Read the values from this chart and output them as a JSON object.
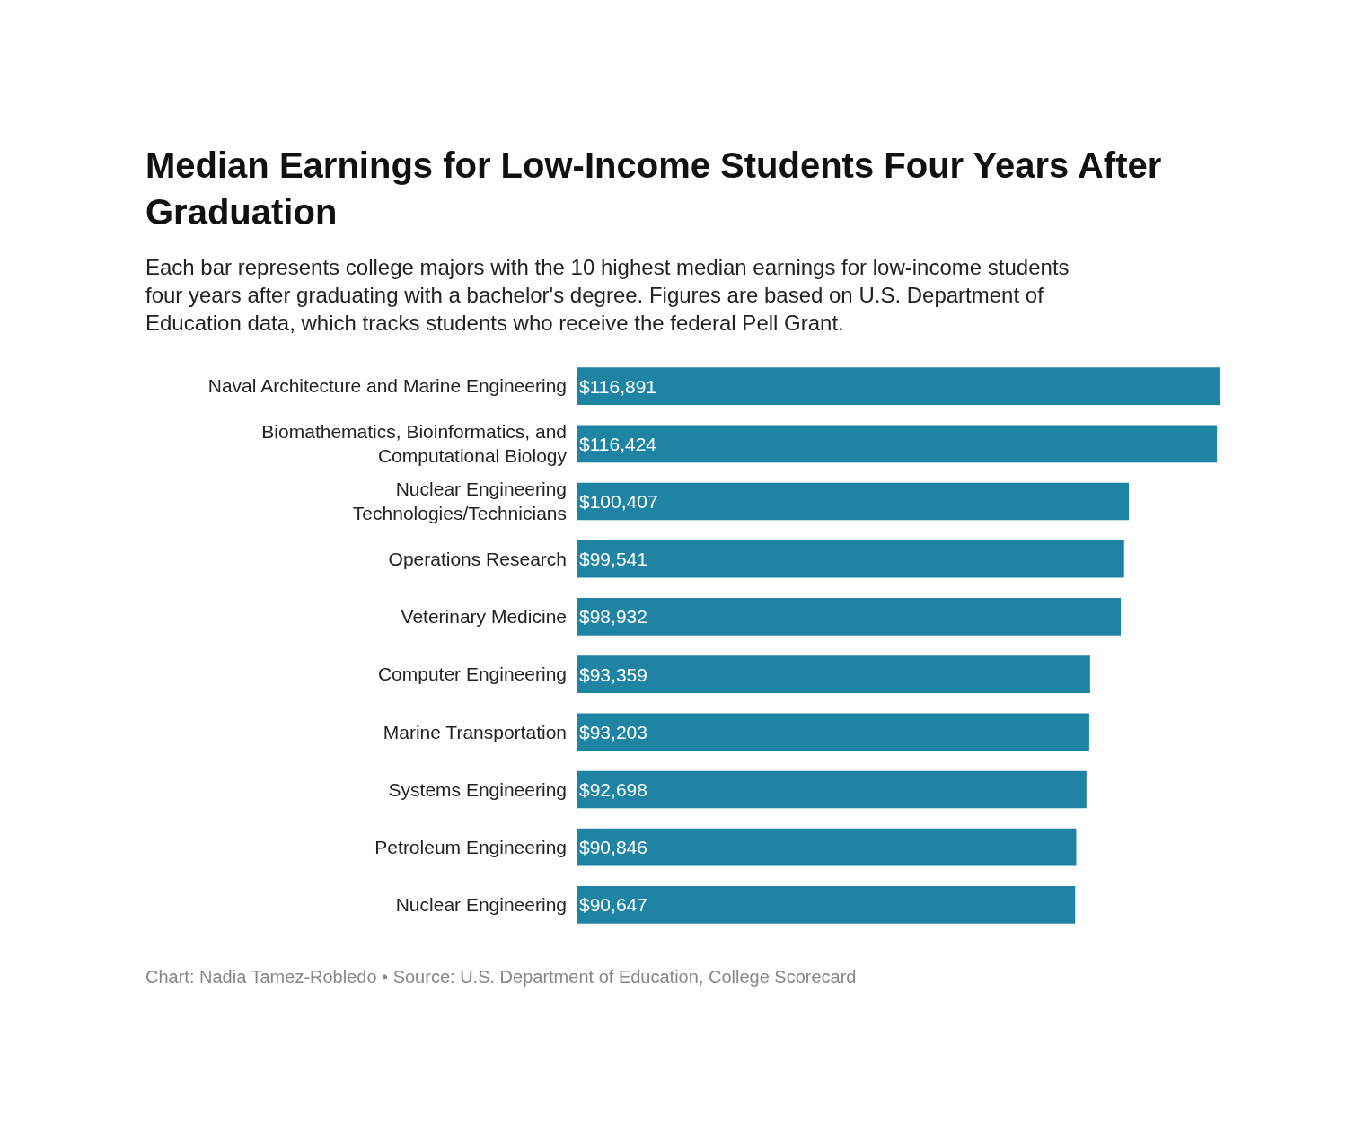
{
  "chart_data": {
    "type": "bar",
    "orientation": "horizontal",
    "title": "Median Earnings for Low-Income Students Four Years After Graduation",
    "subtitle": "Each bar represents college majors with the 10 highest median earnings for low-income students four years after graduating with a bachelor's degree. Figures are based on U.S. Department of Education data, which tracks students who receive the federal Pell Grant.",
    "annotations": [
      "Chart: Nadia Tamez-Robledo • Source: U.S. Department of Education, College Scorecard"
    ],
    "categories": [
      "Naval Architecture and Marine Engineering",
      "Biomathematics, Bioinformatics, and Computational Biology",
      "Nuclear Engineering Technologies/Technicians",
      "Operations Research",
      "Veterinary Medicine",
      "Computer Engineering",
      "Marine Transportation",
      "Systems Engineering",
      "Petroleum Engineering",
      "Nuclear Engineering"
    ],
    "values": [
      116891,
      116424,
      100407,
      99541,
      98932,
      93359,
      93203,
      92698,
      90846,
      90647
    ],
    "value_labels": [
      "$116,891",
      "$116,424",
      "$100,407",
      "$99,541",
      "$98,932",
      "$93,359",
      "$93,203",
      "$92,698",
      "$90,846",
      "$90,647"
    ],
    "color": "#1f83a3"
  }
}
